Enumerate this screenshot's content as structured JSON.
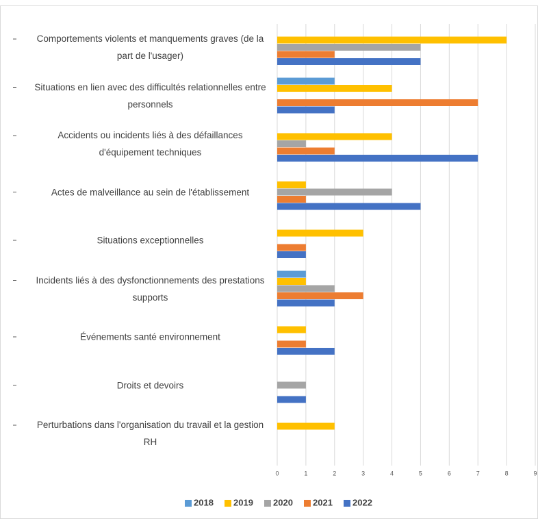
{
  "chart_data": {
    "type": "bar",
    "orientation": "horizontal",
    "categories": [
      "Comportements violents et manquements graves (de la part de l'usager)",
      "Situations en lien avec des difficultés relationnelles entre personnels",
      "Accidents ou incidents liés à des défaillances d'équipement techniques",
      "Actes de malveillance au sein de l'établissement",
      "Situations exceptionnelles",
      "Incidents liés à des dysfonctionnements des prestations supports",
      "Événements santé environnement",
      "Droits et devoirs",
      "Perturbations dans l'organisation du travail et la gestion RH"
    ],
    "series": [
      {
        "name": "2018",
        "color": "#5b9bd5",
        "values": [
          0,
          2,
          0,
          0,
          0,
          1,
          0,
          0,
          0
        ]
      },
      {
        "name": "2019",
        "color": "#ffc000",
        "values": [
          8,
          4,
          4,
          1,
          3,
          1,
          1,
          0,
          2
        ]
      },
      {
        "name": "2020",
        "color": "#a5a5a5",
        "values": [
          5,
          0,
          1,
          4,
          0,
          2,
          0,
          1,
          0
        ]
      },
      {
        "name": "2021",
        "color": "#ed7d31",
        "values": [
          2,
          7,
          2,
          1,
          1,
          3,
          1,
          0,
          0
        ]
      },
      {
        "name": "2022",
        "color": "#4472c4",
        "values": [
          5,
          2,
          7,
          5,
          1,
          2,
          2,
          1,
          0
        ]
      }
    ],
    "xlim": [
      0,
      9
    ],
    "xticks": [
      0,
      1,
      2,
      3,
      4,
      5,
      6,
      7,
      8,
      9
    ],
    "grid": true,
    "legend": "bottom"
  }
}
